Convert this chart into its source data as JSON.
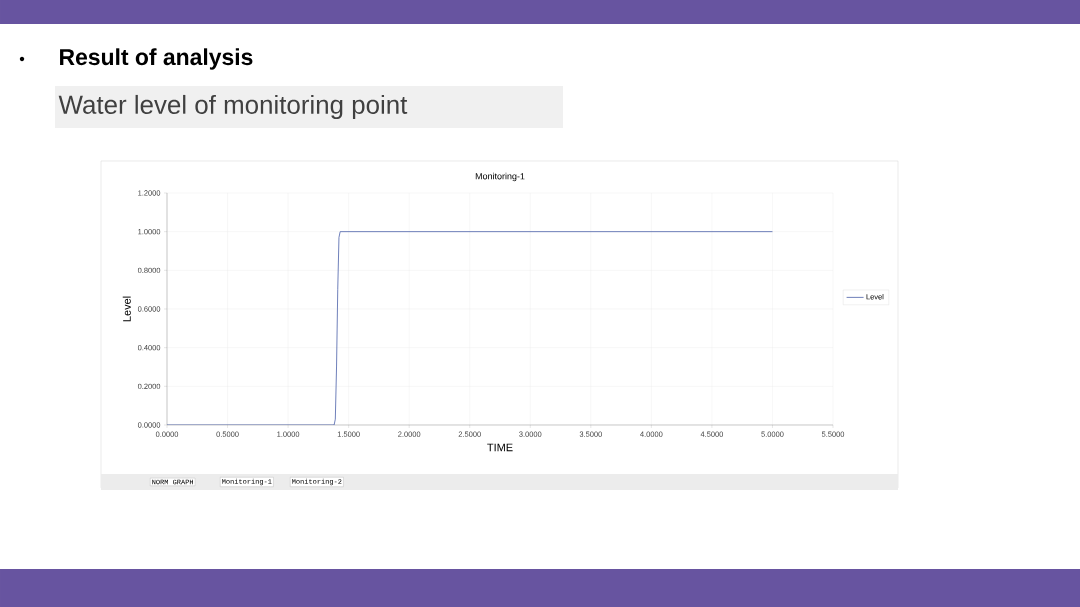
{
  "chart_data": {
    "type": "line",
    "title": "Result of analysis",
    "subtitle": "Water level of monitoring point",
    "xlabel": "TIME",
    "ylabel": "Level",
    "annotations": [
      "Monitoring-1",
      "NORM GRAPH",
      "Monitoring-1",
      "Monitoring-2"
    ],
    "x": [
      0,
      1.38,
      1.39,
      1.4,
      1.41,
      1.42,
      1.43,
      5.0
    ],
    "series": [
      {
        "name": "Level",
        "color": "#4a5fa8",
        "values": [
          0,
          0,
          0.03,
          0.3,
          0.7,
          0.97,
          1.0,
          1.0
        ]
      }
    ],
    "xlim": [
      0,
      5.5
    ],
    "ylim": [
      0,
      1.2
    ],
    "xticks": [
      {
        "value": 0,
        "label": "0.0000"
      },
      {
        "value": 0.5,
        "label": "0.5000"
      },
      {
        "value": 1,
        "label": "1.0000"
      },
      {
        "value": 1.5,
        "label": "1.5000"
      },
      {
        "value": 2,
        "label": "2.0000"
      },
      {
        "value": 2.5,
        "label": "2.5000"
      },
      {
        "value": 3,
        "label": "3.0000"
      },
      {
        "value": 3.5,
        "label": "3.5000"
      },
      {
        "value": 4,
        "label": "4.0000"
      },
      {
        "value": 4.5,
        "label": "4.5000"
      },
      {
        "value": 5,
        "label": "5.0000"
      },
      {
        "value": 5.5,
        "label": "5.5000"
      }
    ],
    "yticks": [
      {
        "value": 0,
        "label": "0.0000"
      },
      {
        "value": 0.2,
        "label": "0.2000"
      },
      {
        "value": 0.4,
        "label": "0.4000"
      },
      {
        "value": 0.6,
        "label": "0.6000"
      },
      {
        "value": 0.8,
        "label": "0.8000"
      },
      {
        "value": 1,
        "label": "1.0000"
      },
      {
        "value": 1.2,
        "label": "1.2000"
      }
    ],
    "grid": true,
    "legend": "right",
    "marker": "none",
    "line_style": "solid"
  }
}
